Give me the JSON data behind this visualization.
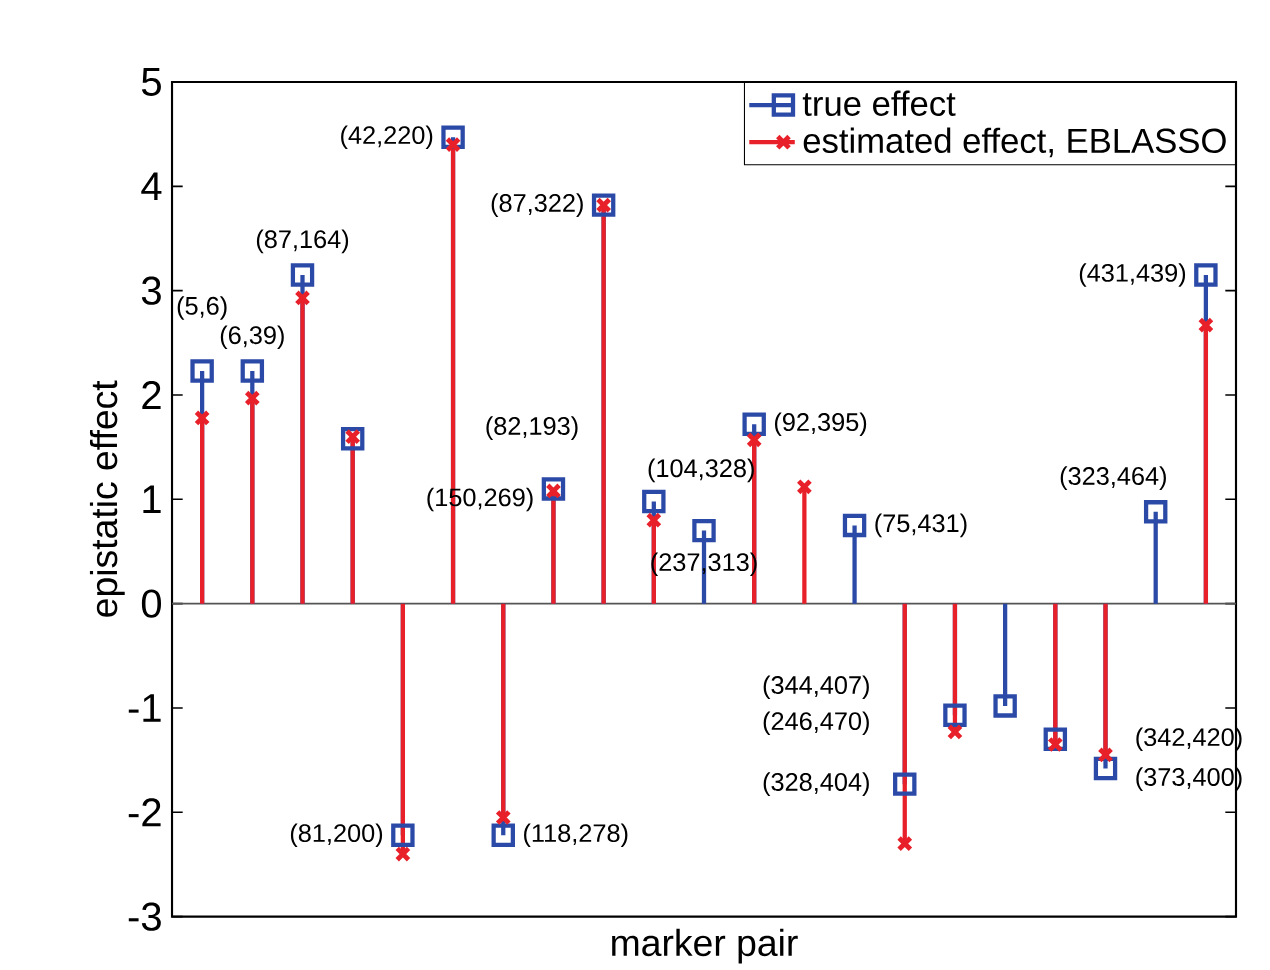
{
  "chart_data": {
    "type": "lollipop",
    "xlabel": "marker pair",
    "ylabel": "epistatic effect",
    "ylim": [
      -3,
      5
    ],
    "categories": [
      null,
      null,
      null,
      null,
      null,
      null,
      null,
      null,
      null,
      null,
      null,
      null,
      null,
      null,
      null,
      null,
      null,
      null,
      null,
      null,
      null
    ],
    "yticks": [
      -3,
      -2,
      -1,
      0,
      1,
      2,
      3,
      4,
      5
    ],
    "tick_labels": "y",
    "grid": false,
    "ref_lines": [
      {
        "axis": "y",
        "value": 0,
        "color": "#555555"
      }
    ],
    "legend": "top right",
    "series": [
      {
        "name": "true effect",
        "color": "#2b4aa8",
        "marker": "square",
        "values": [
          2.23,
          2.23,
          3.15,
          1.58,
          -2.22,
          4.47,
          -2.22,
          1.1,
          3.82,
          0.98,
          0.7,
          1.72,
          null,
          0.75,
          -1.73,
          -1.07,
          -0.98,
          -1.3,
          -1.58,
          0.88,
          3.15
        ]
      },
      {
        "name": "estimated effect, EBLASSO",
        "color": "#e8202a",
        "marker": "cross",
        "values": [
          1.78,
          1.97,
          2.93,
          1.6,
          -2.4,
          4.4,
          -2.05,
          1.08,
          3.82,
          0.8,
          null,
          1.57,
          1.12,
          null,
          -2.3,
          -1.23,
          null,
          -1.35,
          -1.45,
          null,
          2.67
        ]
      }
    ],
    "annotations": [
      "(5,6)",
      "(6,39)",
      "(87,164)",
      "(82,193)",
      "(81,200)",
      "(42,220)",
      "(118,278)",
      "(150,269)",
      "(87,322)",
      "(104,328)",
      "(237,313)",
      "(92,395)",
      "(75,431)",
      "(328,404)",
      "(246,470)",
      "(344,407)",
      "(342,420)",
      "(373,400)",
      "(323,464)",
      "(431,439)"
    ]
  }
}
